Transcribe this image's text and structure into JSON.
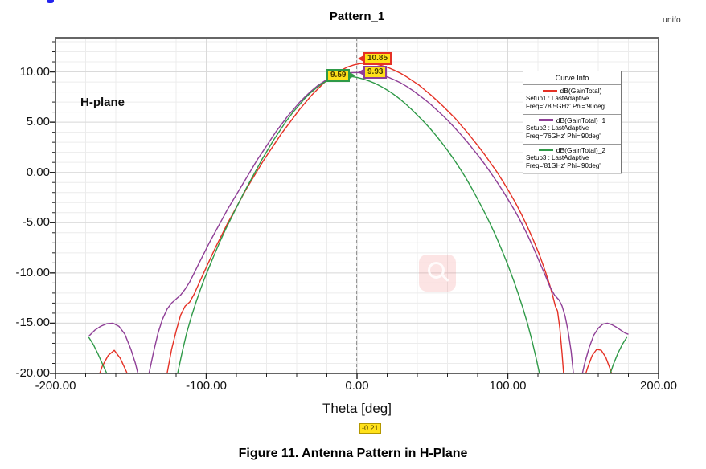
{
  "caption": "Figure 11. Antenna Pattern in H-Plane",
  "annotations": {
    "plane_label": "H-plane",
    "corner_text": "unifo"
  },
  "colors": {
    "red": "#e53125",
    "purple": "#8f3f97",
    "green": "#2f9a48",
    "marker_bg": "#ffe11a",
    "grid_minor": "#ececec",
    "grid_major": "#dadada",
    "border": "#666666"
  },
  "markers": {
    "peak_red": "10.85",
    "peak_purple": "9.93",
    "peak_green": "9.59",
    "theta_cursor": "-0.21"
  },
  "chart_data": {
    "type": "line",
    "title": "Pattern_1",
    "xlabel": "Theta [deg]",
    "ylabel": "",
    "xlim": [
      -200,
      200
    ],
    "ylim": [
      -20,
      13.4
    ],
    "xticks": [
      -200,
      -100,
      0,
      100,
      200
    ],
    "xtick_labels": [
      "-200.00",
      "-100.00",
      "0.00",
      "100.00",
      "200.00"
    ],
    "yticks": [
      10,
      5,
      0,
      -5,
      -10,
      -15,
      -20
    ],
    "ytick_labels": [
      "10.00",
      "5.00",
      "0.00",
      "-5.00",
      "-10.00",
      "-15.00",
      "-20.00"
    ],
    "x_minor_step": 20,
    "y_minor_step": 1,
    "grid": true,
    "legend_position": "upper right inside",
    "legend_title": "Curve Info",
    "cursor_theta": -0.21,
    "series": [
      {
        "name": "dB(GainTotal)",
        "setup": "Setup1 : LastAdaptive",
        "freq_line": "Freq='78.5GHz' Phi='90deg'",
        "color": "#e53125",
        "peak": {
          "x": 5,
          "y": 10.85
        },
        "points": [
          [
            -178,
            -23
          ],
          [
            -173,
            -21
          ],
          [
            -169,
            -19.3
          ],
          [
            -165,
            -18.2
          ],
          [
            -161,
            -17.7
          ],
          [
            -157,
            -18.5
          ],
          [
            -153,
            -19.8
          ],
          [
            -150,
            -21
          ],
          [
            -146,
            -22.5
          ],
          [
            -140,
            -23
          ],
          [
            -132,
            -22
          ],
          [
            -128,
            -20.8
          ],
          [
            -126,
            -20
          ],
          [
            -123,
            -17.6
          ],
          [
            -120,
            -15.8
          ],
          [
            -117,
            -14.2
          ],
          [
            -114,
            -13.3
          ],
          [
            -111,
            -12.9
          ],
          [
            -108,
            -12.1
          ],
          [
            -105,
            -11.1
          ],
          [
            -102,
            -10.1
          ],
          [
            -98,
            -8.8
          ],
          [
            -94,
            -7.5
          ],
          [
            -90,
            -6.3
          ],
          [
            -86,
            -5.1
          ],
          [
            -82,
            -4
          ],
          [
            -78,
            -2.9
          ],
          [
            -74,
            -1.8
          ],
          [
            -70,
            -0.8
          ],
          [
            -66,
            0.2
          ],
          [
            -62,
            1.2
          ],
          [
            -58,
            2.1
          ],
          [
            -54,
            3
          ],
          [
            -50,
            3.9
          ],
          [
            -46,
            4.7
          ],
          [
            -42,
            5.5
          ],
          [
            -38,
            6.3
          ],
          [
            -34,
            7
          ],
          [
            -30,
            7.7
          ],
          [
            -26,
            8.3
          ],
          [
            -22,
            8.9
          ],
          [
            -18,
            9.4
          ],
          [
            -14,
            9.8
          ],
          [
            -10,
            10.2
          ],
          [
            -6,
            10.5
          ],
          [
            -2,
            10.7
          ],
          [
            2,
            10.82
          ],
          [
            5,
            10.85
          ],
          [
            9,
            10.82
          ],
          [
            13,
            10.75
          ],
          [
            17,
            10.6
          ],
          [
            21,
            10.4
          ],
          [
            25,
            10.15
          ],
          [
            29,
            9.85
          ],
          [
            33,
            9.5
          ],
          [
            37,
            9.1
          ],
          [
            41,
            8.7
          ],
          [
            45,
            8.2
          ],
          [
            49,
            7.7
          ],
          [
            53,
            7.15
          ],
          [
            57,
            6.6
          ],
          [
            61,
            6
          ],
          [
            65,
            5.4
          ],
          [
            69,
            4.7
          ],
          [
            73,
            4
          ],
          [
            77,
            3.25
          ],
          [
            81,
            2.5
          ],
          [
            85,
            1.7
          ],
          [
            89,
            0.85
          ],
          [
            93,
            0
          ],
          [
            97,
            -0.95
          ],
          [
            101,
            -1.95
          ],
          [
            105,
            -3
          ],
          [
            109,
            -4.15
          ],
          [
            113,
            -5.4
          ],
          [
            117,
            -6.75
          ],
          [
            121,
            -8.2
          ],
          [
            125,
            -9.9
          ],
          [
            128,
            -11.3
          ],
          [
            130,
            -12.4
          ],
          [
            131.5,
            -13.3
          ],
          [
            133,
            -13.8
          ],
          [
            134.5,
            -15.5
          ],
          [
            136,
            -18
          ],
          [
            137,
            -20
          ],
          [
            139,
            -22.5
          ],
          [
            143,
            -22.8
          ],
          [
            147,
            -22
          ],
          [
            150,
            -20.8
          ],
          [
            153,
            -19.4
          ],
          [
            156,
            -18.2
          ],
          [
            159,
            -17.6
          ],
          [
            162,
            -17.7
          ],
          [
            165,
            -18.4
          ],
          [
            168,
            -19.6
          ],
          [
            171,
            -21
          ],
          [
            175,
            -22.5
          ],
          [
            178,
            -23
          ]
        ]
      },
      {
        "name": "dB(GainTotal)_1",
        "setup": "Setup2 : LastAdaptive",
        "freq_line": "Freq='76GHz' Phi='90deg'",
        "color": "#8f3f97",
        "peak": {
          "x": 5,
          "y": 9.93
        },
        "points": [
          [
            -178,
            -16.3
          ],
          [
            -174,
            -15.7
          ],
          [
            -170,
            -15.3
          ],
          [
            -166,
            -15.05
          ],
          [
            -162,
            -15
          ],
          [
            -158,
            -15.3
          ],
          [
            -154,
            -16.1
          ],
          [
            -150,
            -17.6
          ],
          [
            -147,
            -19
          ],
          [
            -144,
            -20.8
          ],
          [
            -141,
            -21.2
          ],
          [
            -139,
            -20.5
          ],
          [
            -138,
            -20
          ],
          [
            -135,
            -17.9
          ],
          [
            -132,
            -16
          ],
          [
            -129,
            -14.6
          ],
          [
            -126,
            -13.6
          ],
          [
            -123,
            -13
          ],
          [
            -120,
            -12.6
          ],
          [
            -117,
            -12.2
          ],
          [
            -114,
            -11.6
          ],
          [
            -111,
            -10.9
          ],
          [
            -108,
            -10
          ],
          [
            -105,
            -9.1
          ],
          [
            -102,
            -8.2
          ],
          [
            -98,
            -7
          ],
          [
            -94,
            -5.9
          ],
          [
            -90,
            -4.8
          ],
          [
            -86,
            -3.7
          ],
          [
            -82,
            -2.7
          ],
          [
            -78,
            -1.7
          ],
          [
            -74,
            -0.7
          ],
          [
            -70,
            0.3
          ],
          [
            -66,
            1.3
          ],
          [
            -62,
            2.2
          ],
          [
            -58,
            3.1
          ],
          [
            -54,
            4
          ],
          [
            -50,
            4.8
          ],
          [
            -46,
            5.6
          ],
          [
            -42,
            6.3
          ],
          [
            -38,
            7
          ],
          [
            -34,
            7.6
          ],
          [
            -30,
            8.15
          ],
          [
            -26,
            8.65
          ],
          [
            -22,
            9.05
          ],
          [
            -18,
            9.4
          ],
          [
            -14,
            9.65
          ],
          [
            -10,
            9.8
          ],
          [
            -6,
            9.9
          ],
          [
            -2,
            9.93
          ],
          [
            2,
            9.93
          ],
          [
            5,
            9.93
          ],
          [
            9,
            9.9
          ],
          [
            13,
            9.8
          ],
          [
            17,
            9.65
          ],
          [
            21,
            9.45
          ],
          [
            25,
            9.2
          ],
          [
            29,
            8.9
          ],
          [
            33,
            8.55
          ],
          [
            37,
            8.15
          ],
          [
            41,
            7.7
          ],
          [
            45,
            7.25
          ],
          [
            49,
            6.75
          ],
          [
            53,
            6.2
          ],
          [
            57,
            5.65
          ],
          [
            61,
            5.05
          ],
          [
            65,
            4.4
          ],
          [
            69,
            3.75
          ],
          [
            73,
            3.05
          ],
          [
            77,
            2.3
          ],
          [
            81,
            1.55
          ],
          [
            85,
            0.75
          ],
          [
            89,
            -0.1
          ],
          [
            93,
            -1
          ],
          [
            97,
            -1.9
          ],
          [
            101,
            -2.9
          ],
          [
            105,
            -3.9
          ],
          [
            109,
            -5
          ],
          [
            113,
            -6.2
          ],
          [
            117,
            -7.5
          ],
          [
            121,
            -8.9
          ],
          [
            125,
            -10.3
          ],
          [
            128,
            -11.4
          ],
          [
            131,
            -12.2
          ],
          [
            134,
            -12.7
          ],
          [
            136,
            -13.3
          ],
          [
            138,
            -14.3
          ],
          [
            140,
            -15.8
          ],
          [
            142,
            -17.8
          ],
          [
            143.5,
            -20
          ],
          [
            145,
            -21.3
          ],
          [
            147,
            -21.5
          ],
          [
            149,
            -20.3
          ],
          [
            151,
            -19
          ],
          [
            154,
            -17.4
          ],
          [
            157,
            -16.2
          ],
          [
            160,
            -15.5
          ],
          [
            163,
            -15.1
          ],
          [
            166,
            -15
          ],
          [
            169,
            -15.15
          ],
          [
            172,
            -15.4
          ],
          [
            175,
            -15.7
          ],
          [
            178,
            -16
          ],
          [
            180,
            -16.1
          ]
        ]
      },
      {
        "name": "dB(GainTotal)_2",
        "setup": "Setup3 : LastAdaptive",
        "freq_line": "Freq='81GHz' Phi='90deg'",
        "color": "#2f9a48",
        "peak": {
          "x": -8,
          "y": 9.59
        },
        "points": [
          [
            -178,
            -16.4
          ],
          [
            -175,
            -17.1
          ],
          [
            -172,
            -18
          ],
          [
            -169,
            -19
          ],
          [
            -166,
            -20
          ],
          [
            -163,
            -21.3
          ],
          [
            -160,
            -22.5
          ],
          [
            -156,
            -23
          ],
          [
            -130,
            -23
          ],
          [
            -125,
            -21.8
          ],
          [
            -122,
            -20.8
          ],
          [
            -119,
            -20
          ],
          [
            -116,
            -17.9
          ],
          [
            -113,
            -16
          ],
          [
            -110,
            -14.4
          ],
          [
            -107,
            -13
          ],
          [
            -104,
            -11.7
          ],
          [
            -101,
            -10.5
          ],
          [
            -98,
            -9.4
          ],
          [
            -95,
            -8.3
          ],
          [
            -91,
            -6.9
          ],
          [
            -87,
            -5.6
          ],
          [
            -83,
            -4.4
          ],
          [
            -79,
            -3.2
          ],
          [
            -75,
            -2
          ],
          [
            -71,
            -0.9
          ],
          [
            -67,
            0.2
          ],
          [
            -63,
            1.3
          ],
          [
            -59,
            2.3
          ],
          [
            -55,
            3.3
          ],
          [
            -51,
            4.2
          ],
          [
            -47,
            5.1
          ],
          [
            -43,
            5.9
          ],
          [
            -39,
            6.6
          ],
          [
            -35,
            7.3
          ],
          [
            -31,
            7.9
          ],
          [
            -27,
            8.4
          ],
          [
            -23,
            8.85
          ],
          [
            -19,
            9.2
          ],
          [
            -15,
            9.45
          ],
          [
            -11,
            9.57
          ],
          [
            -8,
            9.59
          ],
          [
            -4,
            9.55
          ],
          [
            0,
            9.45
          ],
          [
            4,
            9.3
          ],
          [
            8,
            9.1
          ],
          [
            12,
            8.85
          ],
          [
            16,
            8.55
          ],
          [
            20,
            8.2
          ],
          [
            24,
            7.8
          ],
          [
            28,
            7.35
          ],
          [
            32,
            6.85
          ],
          [
            36,
            6.3
          ],
          [
            40,
            5.7
          ],
          [
            44,
            5.1
          ],
          [
            48,
            4.45
          ],
          [
            52,
            3.75
          ],
          [
            56,
            3
          ],
          [
            60,
            2.2
          ],
          [
            64,
            1.35
          ],
          [
            68,
            0.45
          ],
          [
            72,
            -0.5
          ],
          [
            76,
            -1.55
          ],
          [
            80,
            -2.65
          ],
          [
            84,
            -3.8
          ],
          [
            88,
            -5
          ],
          [
            92,
            -6.3
          ],
          [
            96,
            -7.7
          ],
          [
            100,
            -9.2
          ],
          [
            104,
            -10.8
          ],
          [
            107,
            -12.1
          ],
          [
            110,
            -13.5
          ],
          [
            113,
            -15
          ],
          [
            116,
            -16.7
          ],
          [
            119,
            -18.6
          ],
          [
            121,
            -20
          ],
          [
            123,
            -21.5
          ],
          [
            126,
            -23
          ],
          [
            160,
            -23
          ],
          [
            163,
            -22
          ],
          [
            166,
            -20.8
          ],
          [
            168,
            -20
          ],
          [
            170,
            -19.1
          ],
          [
            173,
            -18
          ],
          [
            176,
            -17.1
          ],
          [
            179,
            -16.4
          ]
        ]
      }
    ]
  }
}
